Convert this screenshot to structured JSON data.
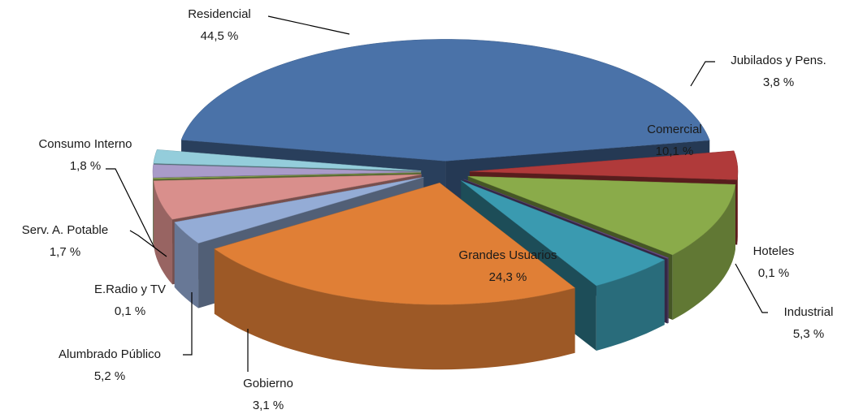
{
  "chart_data": {
    "type": "pie",
    "categories": [
      "Residencial",
      "Jubilados y Pens.",
      "Comercial",
      "Hoteles",
      "Industrial",
      "Grandes Usuarios",
      "Gobierno",
      "Alumbrado Público",
      "E.Radio y TV",
      "Serv. A. Potable",
      "Consumo Interno"
    ],
    "values": [
      44.5,
      3.8,
      10.1,
      0.1,
      5.3,
      24.3,
      3.1,
      5.2,
      0.1,
      1.7,
      1.8
    ],
    "value_labels": [
      "44,5 %",
      "3,8 %",
      "10,1 %",
      "0,1 %",
      "5,3 %",
      "24,3  %",
      "3,1 %",
      "5,2 %",
      "0,1 %",
      "1,7 %",
      "1,8 %"
    ],
    "colors": [
      "#4a72a8",
      "#b03a3a",
      "#8aab4a",
      "#6a4d8a",
      "#3a9ab0",
      "#e07f36",
      "#94acd6",
      "#d98f8c",
      "#9bbb59",
      "#a99bc9",
      "#94cddb"
    ]
  }
}
